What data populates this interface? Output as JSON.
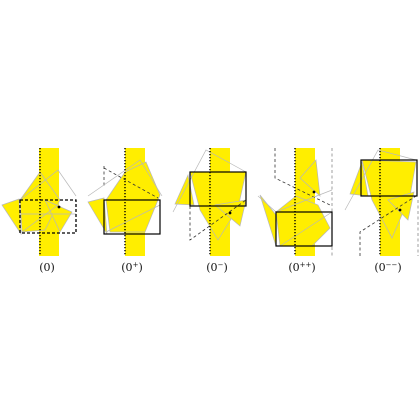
{
  "panels": [
    {
      "id": "p0",
      "label": "(0)",
      "sup": ""
    },
    {
      "id": "p0plus",
      "label": "(0",
      "sup": "+",
      "close": ")"
    },
    {
      "id": "p0minus",
      "label": "(0",
      "sup": "−",
      "close": ")"
    },
    {
      "id": "p0plusplus",
      "label": "(0",
      "sup": "++",
      "close": ")"
    },
    {
      "id": "p0minusminus",
      "label": "(0",
      "sup": "−−",
      "close": ")"
    }
  ],
  "colors": {
    "strip": "#ffee00",
    "outline": "#000000",
    "gray_edge": "#b8b8b8"
  }
}
